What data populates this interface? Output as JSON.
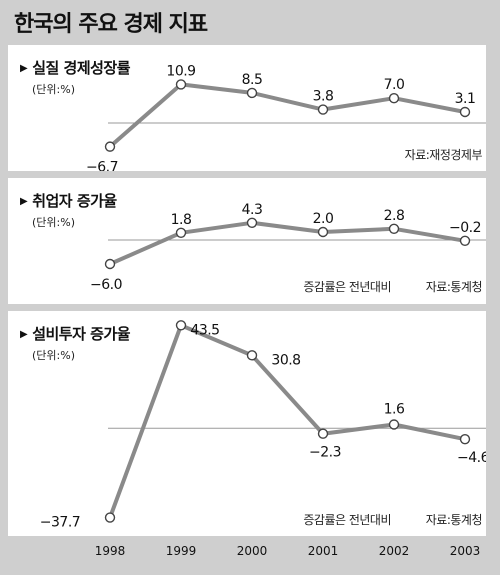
{
  "title": "한국의 주요 경제 지표",
  "chart_data": [
    {
      "type": "line",
      "title": "실질 경제성장률",
      "unit": "(단위:%)",
      "categories": [
        "1998",
        "1999",
        "2000",
        "2001",
        "2002",
        "2003"
      ],
      "values": [
        -6.7,
        10.9,
        8.5,
        3.8,
        7.0,
        3.1
      ],
      "labels": [
        "−6.7",
        "10.9",
        "8.5",
        "3.8",
        "7.0",
        "3.1"
      ],
      "notes": [
        "자료:재정경제부"
      ],
      "ylim": [
        -8.5,
        13
      ],
      "baseline": 0
    },
    {
      "type": "line",
      "title": "취업자 증가율",
      "unit": "(단위:%)",
      "categories": [
        "1998",
        "1999",
        "2000",
        "2001",
        "2002",
        "2003"
      ],
      "values": [
        -6.0,
        1.8,
        4.3,
        2.0,
        2.8,
        -0.2
      ],
      "labels": [
        "−6.0",
        "1.8",
        "4.3",
        "2.0",
        "2.8",
        "−0.2"
      ],
      "notes": [
        "증감률은 전년대비",
        "자료:통계청"
      ],
      "ylim": [
        -8,
        6
      ],
      "baseline": 0
    },
    {
      "type": "line",
      "title": "설비투자 증가율",
      "unit": "(단위:%)",
      "categories": [
        "1998",
        "1999",
        "2000",
        "2001",
        "2002",
        "2003"
      ],
      "values": [
        -37.7,
        43.5,
        30.8,
        -2.3,
        1.6,
        -4.6
      ],
      "labels": [
        "−37.7",
        "43.5",
        "30.8",
        "−2.3",
        "1.6",
        "−4.6"
      ],
      "notes": [
        "증감률은 전년대비",
        "자료:통계청"
      ],
      "ylim": [
        -40,
        47
      ],
      "baseline": 0
    }
  ],
  "x_ticks": [
    "1998",
    "1999",
    "2000",
    "2001",
    "2002",
    "2003"
  ],
  "colors": {
    "background": "#cfcfcf",
    "panel": "#ffffff",
    "line": "#8a8a8a",
    "marker_fill": "#ffffff",
    "text": "#111111"
  }
}
